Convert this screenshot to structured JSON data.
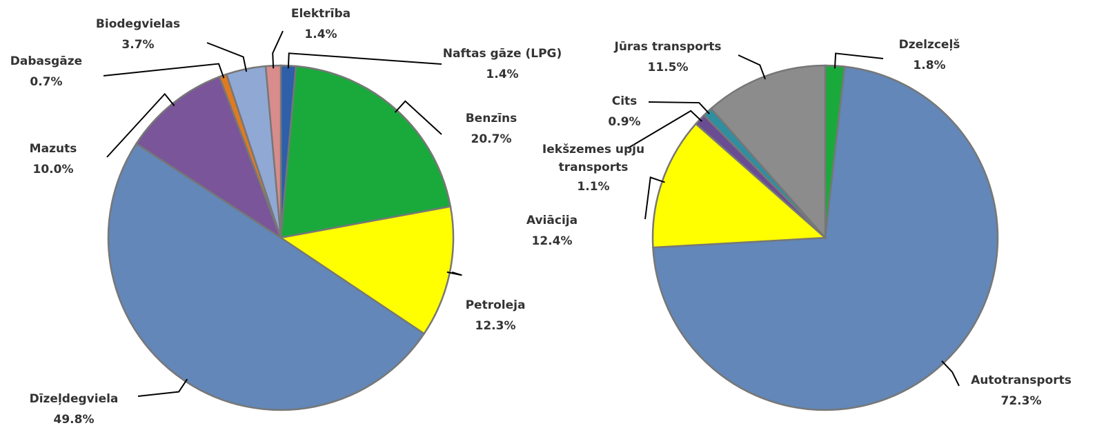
{
  "chart_data": [
    {
      "type": "pie",
      "categories": [
        "Naftas gāze (LPG)",
        "Benzīns",
        "Petroleja",
        "Dīzeļdegviela",
        "Mazuts",
        "Dabasgāze",
        "Biodegvielas",
        "Elektrība"
      ],
      "values": [
        1.4,
        20.7,
        12.3,
        49.8,
        10.0,
        0.7,
        3.7,
        1.4
      ],
      "value_labels": [
        "1.4%",
        "20.7%",
        "12.3%",
        "49.8%",
        "10.0%",
        "0.7%",
        "3.7%",
        "1.4%"
      ],
      "colors": [
        "#2e5fa8",
        "#1aaa3c",
        "#ffff00",
        "#6287b8",
        "#7a5599",
        "#e07a22",
        "#90a8d4",
        "#d98c8c"
      ]
    },
    {
      "type": "pie",
      "categories": [
        "Dzelzceļš",
        "Autotransports",
        "Aviācija",
        "Iekšzemes upju transports",
        "Cits",
        "Jūras transports"
      ],
      "values": [
        1.8,
        72.3,
        12.4,
        1.1,
        0.9,
        11.5
      ],
      "value_labels": [
        "1.8%",
        "72.3%",
        "12.4%",
        "1.1%",
        "0.9%",
        "11.5%"
      ],
      "colors": [
        "#1aaa3c",
        "#6287b8",
        "#ffff00",
        "#6a4c93",
        "#2f8fa0",
        "#8c8c8c"
      ]
    }
  ]
}
